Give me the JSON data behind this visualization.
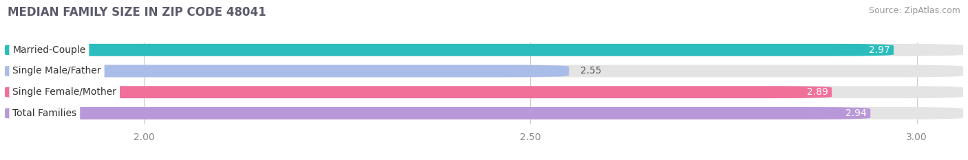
{
  "title": "MEDIAN FAMILY SIZE IN ZIP CODE 48041",
  "source": "Source: ZipAtlas.com",
  "categories": [
    "Married-Couple",
    "Single Male/Father",
    "Single Female/Mother",
    "Total Families"
  ],
  "values": [
    2.97,
    2.55,
    2.89,
    2.94
  ],
  "bar_colors": [
    "#2bbdbd",
    "#aabce8",
    "#f0709a",
    "#b898d8"
  ],
  "label_colors": [
    "white",
    "#666666",
    "white",
    "white"
  ],
  "value_colors": [
    "white",
    "#555555",
    "white",
    "white"
  ],
  "bar_bg_color": "#e4e4e4",
  "xlim_left": 1.82,
  "xlim_right": 3.06,
  "xticks": [
    2.0,
    2.5,
    3.0
  ],
  "bar_height": 0.58,
  "bar_gap": 0.42,
  "figsize": [
    14.06,
    2.33
  ],
  "dpi": 100,
  "title_fontsize": 12,
  "label_fontsize": 10,
  "value_fontsize": 10,
  "source_fontsize": 9,
  "rounding_size": 0.08
}
